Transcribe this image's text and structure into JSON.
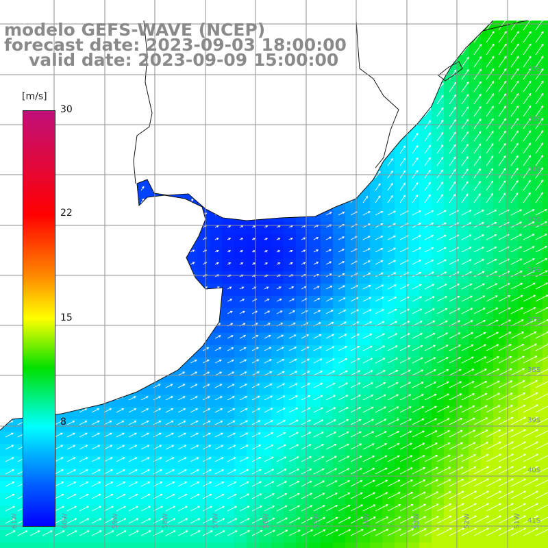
{
  "title": {
    "line1": "modelo GEFS-WAVE (NCEP)",
    "line2": "forecast date: 2023-09-03 18:00:00",
    "line3": "valid date: 2023-09-09 15:00:00"
  },
  "colorbar": {
    "unit": "[m/s]",
    "ticks": [
      "30",
      "22",
      "15",
      "8"
    ],
    "min": 0,
    "max": 30,
    "colors": [
      "#0000ff",
      "#0060ff",
      "#00ffff",
      "#00e000",
      "#ffff00",
      "#ff8c00",
      "#ff0000",
      "#c0107a"
    ]
  },
  "map": {
    "lat_labels": [
      "32S",
      "33S",
      "34S",
      "35S",
      "36S",
      "37S",
      "38S",
      "39S",
      "40S",
      "41S"
    ],
    "lon_labels": [
      "61W",
      "60W",
      "59W",
      "58W",
      "57W",
      "56W",
      "55W",
      "54W",
      "53W",
      "52W",
      "51W"
    ],
    "land_color": "#ffffff",
    "grid_color": "#909090"
  }
}
